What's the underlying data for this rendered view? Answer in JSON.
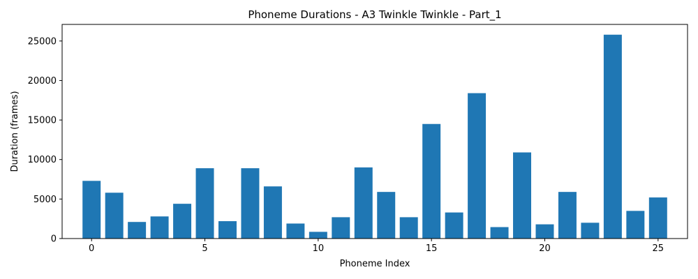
{
  "chart_data": {
    "type": "bar",
    "title": "Phoneme Durations - A3 Twinkle Twinkle - Part_1",
    "xlabel": "Phoneme Index",
    "ylabel": "Duration (frames)",
    "x": [
      0,
      1,
      2,
      3,
      4,
      5,
      6,
      7,
      8,
      9,
      10,
      11,
      12,
      13,
      14,
      15,
      16,
      17,
      18,
      19,
      20,
      21,
      22,
      23,
      24,
      25
    ],
    "values": [
      7300,
      5800,
      2100,
      2800,
      4400,
      8900,
      2200,
      8900,
      6600,
      1900,
      850,
      2700,
      9000,
      5900,
      2700,
      14500,
      3300,
      18400,
      1450,
      10900,
      1800,
      5900,
      2000,
      25800,
      3500,
      5200
    ],
    "xlim": [
      -1.3,
      26.3
    ],
    "ylim": [
      0,
      27100
    ],
    "xticks": [
      0,
      5,
      10,
      15,
      20,
      25
    ],
    "xtick_labels": [
      "0",
      "5",
      "10",
      "15",
      "20",
      "25"
    ],
    "yticks": [
      0,
      5000,
      10000,
      15000,
      20000,
      25000
    ],
    "ytick_labels": [
      "0",
      "5000",
      "10000",
      "15000",
      "20000",
      "25000"
    ],
    "bar_color": "#1f77b4",
    "grid": false,
    "legend": "none"
  }
}
